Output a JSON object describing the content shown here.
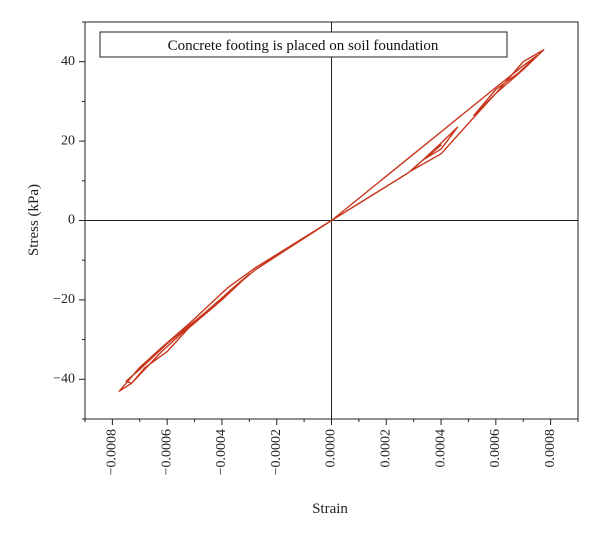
{
  "chart_data": {
    "type": "line",
    "title": "",
    "xlabel": "Strain",
    "ylabel": "Stress (kPa)",
    "xlim": [
      -0.0009,
      0.0009
    ],
    "ylim": [
      -50,
      50
    ],
    "x_ticks": [
      "-0.0008",
      "-0.0006",
      "-0.0004",
      "-0.0002",
      "0.0000",
      "0.0002",
      "0.0004",
      "0.0006",
      "0.0008"
    ],
    "y_ticks": [
      "40",
      "20",
      "0",
      "-20",
      "-40"
    ],
    "grid": false,
    "legend": {
      "text": "Concrete footing is placed on soil foundation",
      "position": "top"
    },
    "series": [
      {
        "color": "#c8361c",
        "points": [
          [
            0.0,
            0.0
          ],
          [
            0.00028,
            12.0
          ],
          [
            0.00033,
            15.0
          ],
          [
            0.0004,
            19.0
          ],
          [
            0.00034,
            15.5
          ],
          [
            0.0004,
            18.0
          ],
          [
            0.00046,
            23.5
          ],
          [
            0.0004,
            19.5
          ],
          [
            0.00033,
            15.0
          ],
          [
            0.00029,
            12.5
          ],
          [
            0.0004,
            16.8
          ],
          [
            0.00052,
            26.0
          ],
          [
            0.0006,
            32.0
          ],
          [
            0.0007,
            38.0
          ],
          [
            0.000775,
            43.0
          ],
          [
            0.0007,
            40.0
          ],
          [
            0.0006,
            32.0
          ],
          [
            0.00052,
            26.5
          ],
          [
            0.0006,
            33.0
          ],
          [
            0.00068,
            37.0
          ],
          [
            0.00075,
            41.5
          ],
          [
            0.0007,
            39.0
          ],
          [
            0.0006,
            33.5
          ],
          [
            0.0,
            0.0
          ],
          [
            -0.00028,
            -12.0
          ],
          [
            -0.00038,
            -17.0
          ],
          [
            -0.00052,
            -26.0
          ],
          [
            -0.00062,
            -32.0
          ],
          [
            -0.0007,
            -37.0
          ],
          [
            -0.000775,
            -43.0
          ],
          [
            -0.00073,
            -41.0
          ],
          [
            -0.00068,
            -37.0
          ],
          [
            -0.0006,
            -33.0
          ],
          [
            -0.00052,
            -27.0
          ],
          [
            -0.0004,
            -20.0
          ],
          [
            -0.0003,
            -13.5
          ],
          [
            -0.00036,
            -17.0
          ],
          [
            -0.00044,
            -22.0
          ],
          [
            -0.00052,
            -26.5
          ],
          [
            -0.0006,
            -31.0
          ],
          [
            -0.0007,
            -37.5
          ],
          [
            -0.00075,
            -40.5
          ],
          [
            -0.00073,
            -41.0
          ],
          [
            -0.00062,
            -33.0
          ],
          [
            -0.0005,
            -25.5
          ],
          [
            -0.0004,
            -19.5
          ],
          [
            -0.00028,
            -12.5
          ],
          [
            0.0,
            0.0
          ]
        ]
      }
    ]
  }
}
